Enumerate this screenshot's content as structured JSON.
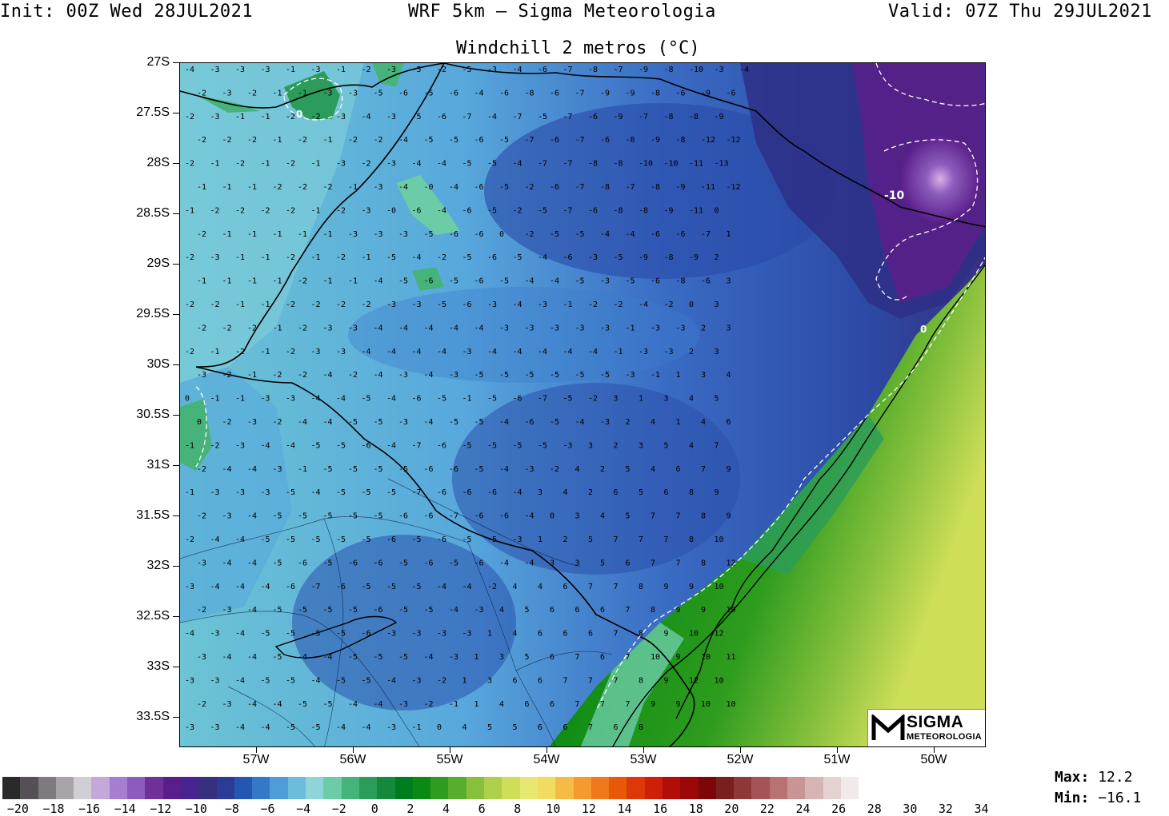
{
  "header": {
    "init": "Init: 00Z Wed 28JUL2021",
    "model": "WRF 5km — Sigma Meteorologia",
    "valid": "Valid: 07Z Thu 29JUL2021"
  },
  "map": {
    "title": "Windchill 2 metros (°C)",
    "lat_labels": [
      "27S",
      "27.5S",
      "28S",
      "28.5S",
      "29S",
      "29.5S",
      "30S",
      "30.5S",
      "31S",
      "31.5S",
      "32S",
      "32.5S",
      "33S",
      "33.5S"
    ],
    "lon_labels": [
      "57W",
      "56W",
      "55W",
      "54W",
      "53W",
      "52W",
      "51W",
      "50W"
    ],
    "contour_labels": [
      "0",
      "-10"
    ]
  },
  "colorbar": {
    "colors": [
      "#2a2a2a",
      "#555055",
      "#7e7a80",
      "#a8a4aa",
      "#d2cfd4",
      "#c4a8d8",
      "#a67ed0",
      "#8c5cbc",
      "#70309a",
      "#5a1e8a",
      "#482490",
      "#36307e",
      "#2a3c96",
      "#2458b0",
      "#3478c8",
      "#4e9cd8",
      "#6cbcdc",
      "#8ed4d8",
      "#6ccca8",
      "#46b47a",
      "#2c9c5a",
      "#14883c",
      "#007c20",
      "#0a8a14",
      "#2e9c1e",
      "#58ac2e",
      "#86c03c",
      "#aed04a",
      "#cede58",
      "#e6e870",
      "#f0dc5e",
      "#f4bc46",
      "#f49a2e",
      "#f07818",
      "#e85808",
      "#dc3808",
      "#cc2008",
      "#b40c08",
      "#9c0808",
      "#7c0608",
      "#7a1e1e",
      "#8e3838",
      "#a45454",
      "#b87272",
      "#c89494",
      "#d6b4b4",
      "#e4d2d2",
      "#f0eaea"
    ],
    "labels": [
      "−20",
      "−18",
      "−16",
      "−14",
      "−12",
      "−10",
      "−8",
      "−6",
      "−4",
      "−2",
      "0",
      "2",
      "4",
      "6",
      "8",
      "10",
      "12",
      "14",
      "16",
      "18",
      "20",
      "22",
      "24",
      "26",
      "28",
      "30",
      "32",
      "34"
    ]
  },
  "stats": {
    "max_label": "Max:",
    "max_value": "12.2",
    "min_label": "Min:",
    "min_value": "−16.1"
  },
  "logo": {
    "line1": "SIGMA",
    "line2": "METEOROLOGIA"
  },
  "grid_values": [
    [
      "-4",
      "-3",
      "-3",
      "-3",
      "-1",
      "-3",
      "-1",
      "-2",
      "-3",
      "-5",
      "-2",
      "-5",
      "-3",
      "-4",
      "-6",
      "-7",
      "-8",
      "-7",
      "-9",
      "-8",
      "-10",
      "-3",
      "-4"
    ],
    [
      "-2",
      "-3",
      "-2",
      "-1",
      "-1",
      "-3",
      "-3",
      "-5",
      "-6",
      "-5",
      "-6",
      "-4",
      "-6",
      "-8",
      "-6",
      "-7",
      "-9",
      "-9",
      "-8",
      "-6",
      "-9",
      "-6"
    ],
    [
      "-2",
      "-3",
      "-1",
      "-1",
      "-2",
      "-2",
      "-3",
      "-4",
      "-3",
      "-5",
      "-6",
      "-7",
      "-4",
      "-7",
      "-5",
      "-7",
      "-6",
      "-9",
      "-7",
      "-8",
      "-8",
      "-9"
    ],
    [
      "-2",
      "-2",
      "-2",
      "-1",
      "-2",
      "-1",
      "-2",
      "-2",
      "-4",
      "-5",
      "-5",
      "-6",
      "-5",
      "-7",
      "-6",
      "-7",
      "-6",
      "-8",
      "-9",
      "-8",
      "-12",
      "-12"
    ],
    [
      "-2",
      "-1",
      "-2",
      "-1",
      "-2",
      "-1",
      "-3",
      "-2",
      "-3",
      "-4",
      "-4",
      "-5",
      "-5",
      "-4",
      "-7",
      "-7",
      "-8",
      "-8",
      "-10",
      "-10",
      "-11",
      "-13"
    ],
    [
      "-1",
      "-1",
      "-1",
      "-2",
      "-2",
      "-2",
      "-1",
      "-3",
      "-4",
      "-0",
      "-4",
      "-6",
      "-5",
      "-2",
      "-6",
      "-7",
      "-8",
      "-7",
      "-8",
      "-9",
      "-11",
      "-12"
    ],
    [
      "-1",
      "-2",
      "-2",
      "-2",
      "-2",
      "-1",
      "-2",
      "-3",
      "-0",
      "-6",
      "-4",
      "-6",
      "-5",
      "-2",
      "-5",
      "-7",
      "-6",
      "-8",
      "-8",
      "-9",
      "-11",
      "0"
    ],
    [
      "-2",
      "-1",
      "-1",
      "-1",
      "-1",
      "-1",
      "-3",
      "-3",
      "-3",
      "-5",
      "-6",
      "-6",
      "0",
      "-2",
      "-5",
      "-5",
      "-4",
      "-4",
      "-6",
      "-6",
      "-7",
      "1"
    ],
    [
      "-2",
      "-3",
      "-1",
      "-1",
      "-2",
      "-1",
      "-2",
      "-1",
      "-5",
      "-4",
      "-2",
      "-5",
      "-6",
      "-5",
      "-4",
      "-6",
      "-3",
      "-5",
      "-9",
      "-8",
      "-9",
      "2"
    ],
    [
      "-1",
      "-1",
      "-1",
      "-1",
      "-2",
      "-1",
      "-1",
      "-4",
      "-5",
      "-6",
      "-5",
      "-6",
      "-5",
      "-4",
      "-4",
      "-5",
      "-3",
      "-5",
      "-6",
      "-8",
      "-6",
      "3"
    ],
    [
      "-2",
      "-2",
      "-1",
      "-1",
      "-2",
      "-2",
      "-2",
      "-2",
      "-3",
      "-3",
      "-5",
      "-6",
      "-3",
      "-4",
      "-3",
      "-1",
      "-2",
      "-2",
      "-4",
      "-2",
      "0",
      "3"
    ],
    [
      "-2",
      "-2",
      "-2",
      "-1",
      "-2",
      "-3",
      "-3",
      "-4",
      "-4",
      "-4",
      "-4",
      "-4",
      "-3",
      "-3",
      "-3",
      "-3",
      "-3",
      "-1",
      "-3",
      "-3",
      "2",
      "3"
    ],
    [
      "-2",
      "-1",
      "-2",
      "-1",
      "-2",
      "-3",
      "-3",
      "-4",
      "-4",
      "-4",
      "-4",
      "-3",
      "-4",
      "-4",
      "-4",
      "-4",
      "-4",
      "-1",
      "-3",
      "-3",
      "2",
      "3"
    ],
    [
      "-3",
      "-2",
      "-1",
      "-2",
      "-2",
      "-4",
      "-2",
      "-4",
      "-3",
      "-4",
      "-3",
      "-5",
      "-5",
      "-5",
      "-5",
      "-5",
      "-5",
      "-3",
      "-1",
      "1",
      "3",
      "4"
    ],
    [
      "0",
      "-1",
      "-1",
      "-3",
      "-3",
      "-4",
      "-4",
      "-5",
      "-4",
      "-6",
      "-5",
      "-1",
      "-5",
      "-6",
      "-7",
      "-5",
      "-2",
      "3",
      "1",
      "3",
      "4",
      "5"
    ],
    [
      "0",
      "-2",
      "-3",
      "-2",
      "-4",
      "-4",
      "-5",
      "-5",
      "-3",
      "-4",
      "-5",
      "-5",
      "-4",
      "-6",
      "-5",
      "-4",
      "-3",
      "2",
      "4",
      "1",
      "4",
      "6"
    ],
    [
      "-1",
      "-2",
      "-3",
      "-4",
      "-4",
      "-5",
      "-5",
      "-6",
      "-4",
      "-7",
      "-6",
      "-5",
      "-5",
      "-5",
      "-5",
      "-3",
      "3",
      "2",
      "3",
      "5",
      "4",
      "7"
    ],
    [
      "-2",
      "-4",
      "-4",
      "-3",
      "-1",
      "-5",
      "-5",
      "-5",
      "-5",
      "-6",
      "-6",
      "-5",
      "-4",
      "-3",
      "-2",
      "4",
      "2",
      "5",
      "4",
      "6",
      "7",
      "9"
    ],
    [
      "-1",
      "-3",
      "-3",
      "-3",
      "-5",
      "-4",
      "-5",
      "-5",
      "-5",
      "-7",
      "-6",
      "-6",
      "-6",
      "-4",
      "3",
      "4",
      "2",
      "6",
      "5",
      "6",
      "8",
      "9"
    ],
    [
      "-2",
      "-3",
      "-4",
      "-5",
      "-5",
      "-5",
      "-5",
      "-5",
      "-6",
      "-6",
      "-7",
      "-6",
      "-6",
      "-4",
      "0",
      "3",
      "4",
      "5",
      "7",
      "7",
      "8",
      "9"
    ],
    [
      "-2",
      "-4",
      "-4",
      "-5",
      "-5",
      "-5",
      "-5",
      "-5",
      "-6",
      "-5",
      "-6",
      "-5",
      "-5",
      "-3",
      "1",
      "2",
      "5",
      "7",
      "7",
      "7",
      "8",
      "10"
    ],
    [
      "-3",
      "-4",
      "-4",
      "-5",
      "-6",
      "-5",
      "-6",
      "-6",
      "-5",
      "-6",
      "-5",
      "-6",
      "-4",
      "-4",
      "3",
      "3",
      "5",
      "6",
      "7",
      "7",
      "8",
      "12"
    ],
    [
      "-3",
      "-4",
      "-4",
      "-4",
      "-6",
      "-7",
      "-6",
      "-5",
      "-5",
      "-5",
      "-4",
      "-4",
      "-2",
      "4",
      "4",
      "6",
      "7",
      "7",
      "8",
      "9",
      "9",
      "10"
    ],
    [
      "-2",
      "-3",
      "-4",
      "-5",
      "-5",
      "-5",
      "-5",
      "-6",
      "-5",
      "-5",
      "-4",
      "-3",
      "4",
      "5",
      "6",
      "6",
      "6",
      "7",
      "8",
      "9",
      "9",
      "10"
    ],
    [
      "-4",
      "-3",
      "-4",
      "-5",
      "-5",
      "-5",
      "-5",
      "-6",
      "-3",
      "-3",
      "-3",
      "-3",
      "1",
      "4",
      "6",
      "6",
      "6",
      "7",
      "8",
      "9",
      "10",
      "12"
    ],
    [
      "-3",
      "-4",
      "-4",
      "-5",
      "-4",
      "-4",
      "-5",
      "-5",
      "-5",
      "-4",
      "-3",
      "1",
      "3",
      "5",
      "6",
      "7",
      "6",
      "7",
      "10",
      "9",
      "10",
      "11"
    ],
    [
      "-3",
      "-3",
      "-4",
      "-5",
      "-5",
      "-4",
      "-5",
      "-5",
      "-4",
      "-3",
      "-2",
      "1",
      "3",
      "6",
      "6",
      "7",
      "7",
      "7",
      "8",
      "9",
      "12",
      "10"
    ],
    [
      "-2",
      "-3",
      "-4",
      "-4",
      "-5",
      "-5",
      "-4",
      "-4",
      "-3",
      "-2",
      "-1",
      "1",
      "4",
      "6",
      "6",
      "7",
      "7",
      "7",
      "9",
      "9",
      "10",
      "10"
    ],
    [
      "-3",
      "-3",
      "-4",
      "-4",
      "-5",
      "-5",
      "-4",
      "-4",
      "-3",
      "-1",
      "0",
      "4",
      "5",
      "5",
      "6",
      "6",
      "7",
      "6",
      "8"
    ]
  ]
}
